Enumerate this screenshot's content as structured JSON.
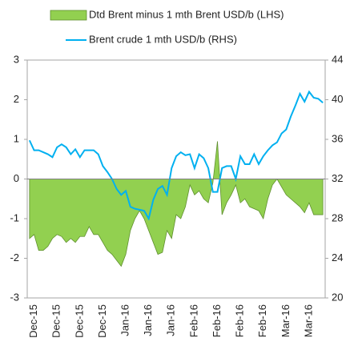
{
  "chart_data": {
    "type": "area",
    "categories": [
      null,
      "Dec-15",
      null,
      null,
      null,
      null,
      "Dec-15",
      null,
      null,
      null,
      null,
      "Dec-15",
      null,
      null,
      null,
      null,
      "Dec-15",
      null,
      null,
      null,
      null,
      "Jan-16",
      null,
      null,
      null,
      null,
      "Jan-16",
      null,
      null,
      null,
      null,
      "Jan-16",
      null,
      null,
      null,
      null,
      "Feb-16",
      null,
      null,
      null,
      null,
      "Feb-16",
      null,
      null,
      null,
      null,
      "Feb-16",
      null,
      null,
      null,
      null,
      "Feb-16",
      null,
      null,
      null,
      null,
      "Mar-16",
      null,
      null,
      null,
      null,
      "Mar-16",
      null,
      null,
      null
    ],
    "series": [
      {
        "name": "Dtd Brent minus 1 mth Brent USD/b (LHS)",
        "type": "area",
        "axis": "y",
        "color": "#92d050",
        "edge": "#5f8f2f",
        "values": [
          -1.5,
          -1.4,
          -1.8,
          -1.8,
          -1.7,
          -1.5,
          -1.4,
          -1.45,
          -1.6,
          -1.5,
          -1.6,
          -1.45,
          -1.45,
          -1.2,
          -1.4,
          -1.4,
          -1.6,
          -1.8,
          -1.9,
          -2.05,
          -2.2,
          -1.9,
          -1.3,
          -1.0,
          -0.8,
          -1.0,
          -1.3,
          -1.6,
          -1.9,
          -1.85,
          -1.3,
          -1.5,
          -0.9,
          -1.0,
          -0.7,
          -0.15,
          -0.4,
          -0.3,
          -0.5,
          -0.6,
          -0.1,
          0.95,
          -0.9,
          -0.6,
          -0.4,
          -0.15,
          -0.6,
          -0.5,
          -0.7,
          -0.75,
          -0.8,
          -1.0,
          -0.5,
          -0.15,
          0,
          -0.2,
          -0.4,
          -0.5,
          -0.6,
          -0.7,
          -0.85,
          -0.6,
          -0.9,
          -0.9,
          -0.9
        ]
      },
      {
        "name": "Brent crude 1 mth USD/b (RHS)",
        "type": "line",
        "axis": "y2",
        "color": "#00b0f0",
        "values": [
          35.9,
          34.9,
          34.9,
          34.7,
          34.5,
          34.2,
          35.2,
          35.5,
          35.2,
          34.5,
          35.0,
          34.2,
          34.9,
          34.9,
          34.9,
          34.5,
          33.3,
          32.7,
          32.0,
          31.0,
          30.4,
          30.8,
          29.2,
          29.0,
          28.9,
          28.8,
          28.0,
          29.9,
          31.0,
          31.3,
          30.4,
          33.1,
          34.3,
          34.7,
          34.4,
          34.5,
          33.1,
          34.5,
          34.1,
          33.1,
          30.7,
          30.7,
          33.1,
          33.3,
          33.3,
          32.0,
          34.3,
          33.5,
          33.5,
          34.5,
          33.5,
          34.3,
          34.9,
          35.4,
          35.7,
          36.6,
          37.0,
          38.3,
          39.4,
          40.6,
          39.8,
          40.8,
          40.2,
          40.1,
          39.7
        ]
      }
    ],
    "ylim": [
      -3,
      3
    ],
    "yticks": [
      -3,
      -2,
      -1,
      0,
      1,
      2,
      3
    ],
    "y2lim": [
      20,
      44
    ],
    "y2ticks": [
      20,
      24,
      28,
      32,
      36,
      40,
      44
    ]
  }
}
